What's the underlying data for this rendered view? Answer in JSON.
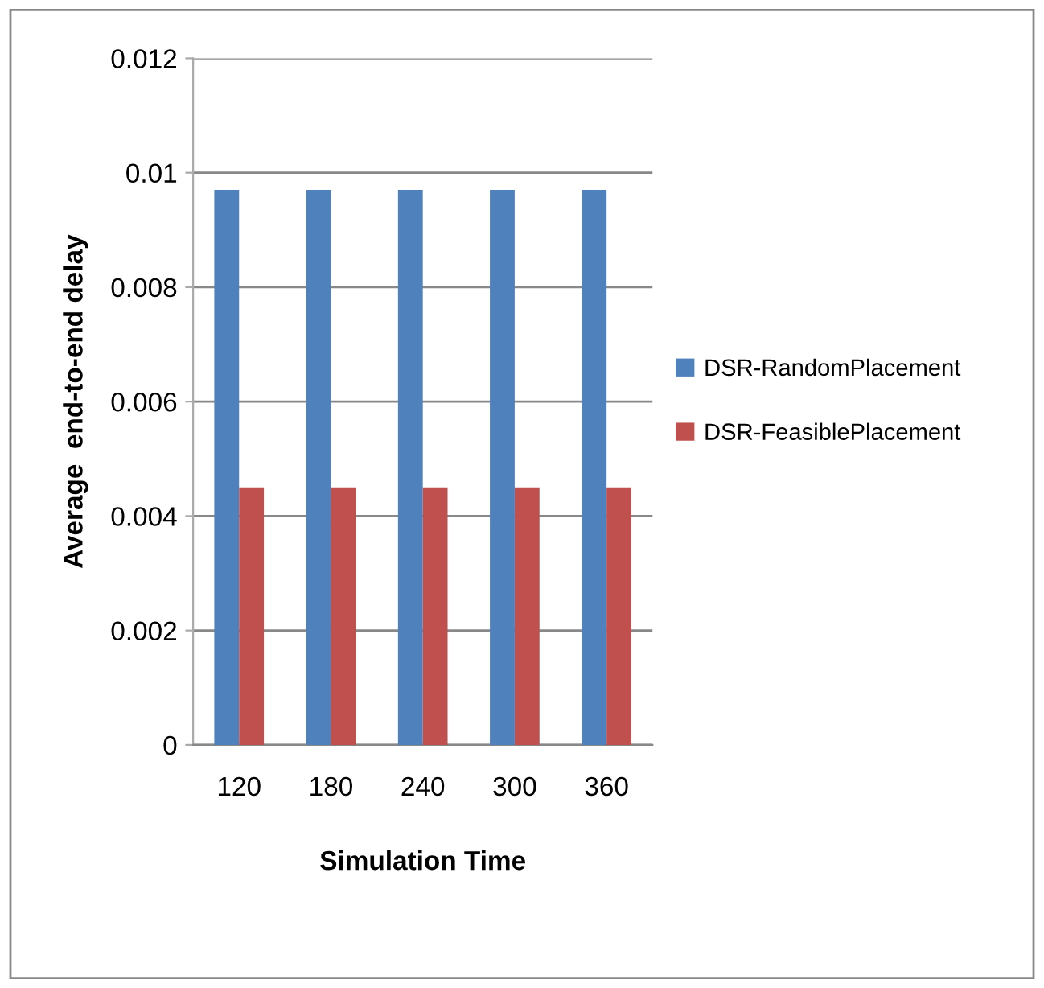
{
  "chart_data": {
    "type": "bar",
    "xlabel": "Simulation Time",
    "ylabel": "Average  end-to-end delay",
    "categories": [
      "120",
      "180",
      "240",
      "300",
      "360"
    ],
    "series": [
      {
        "name": "DSR-RandomPlacement",
        "color": "#4f81bd",
        "values": [
          0.0097,
          0.0097,
          0.0097,
          0.0097,
          0.0097
        ]
      },
      {
        "name": "DSR-FeasiblePlacement",
        "color": "#c0504d",
        "values": [
          0.0045,
          0.0045,
          0.0045,
          0.0045,
          0.0045
        ]
      }
    ],
    "ylim": [
      0,
      0.012
    ],
    "yticks": [
      0,
      0.002,
      0.004,
      0.006,
      0.008,
      {
        "value": 0.01,
        "label": "0.01"
      },
      0.012
    ],
    "grid": "y",
    "legend": "right"
  }
}
